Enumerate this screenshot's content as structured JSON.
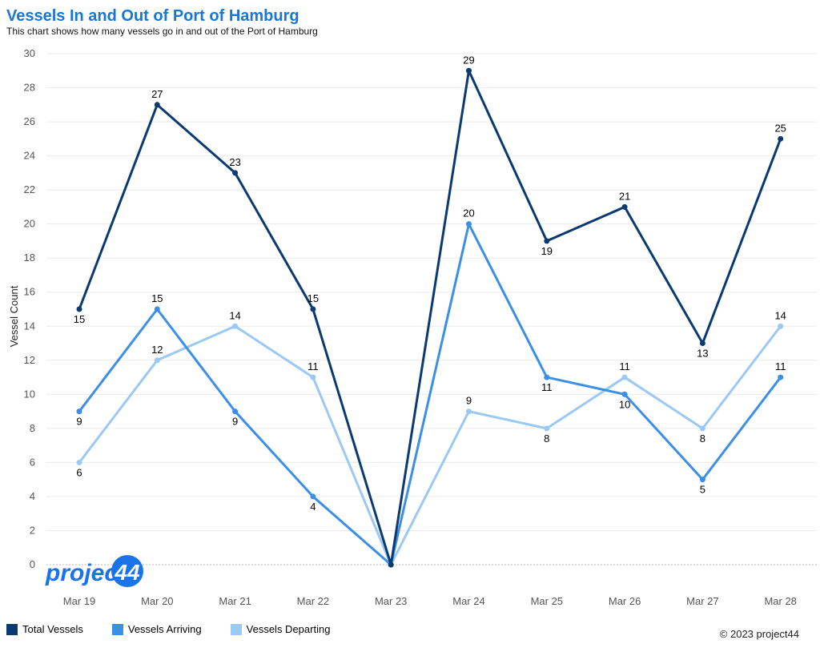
{
  "title": "Vessels In and Out of Port of Hamburg",
  "subtitle": "This chart shows how many vessels go in and out of the Port of Hamburg",
  "copyright": "© 2023 project44",
  "logo_text": "project44",
  "chart_data": {
    "type": "line",
    "title": "Vessels In and Out of Port of Hamburg",
    "ylabel": "Vessel Count",
    "xlabel": "",
    "ylim": [
      0,
      30
    ],
    "yticks": [
      0,
      2,
      4,
      6,
      8,
      10,
      12,
      14,
      16,
      18,
      20,
      22,
      24,
      26,
      28,
      30
    ],
    "grid": true,
    "legend": "bottom-left",
    "categories": [
      "Mar 19",
      "Mar 20",
      "Mar 21",
      "Mar 22",
      "Mar 23",
      "Mar 24",
      "Mar 25",
      "Mar 26",
      "Mar 27",
      "Mar 28"
    ],
    "series": [
      {
        "name": "Total Vessels",
        "color": "#0a3a70",
        "values": [
          15,
          27,
          23,
          15,
          0,
          29,
          19,
          21,
          13,
          25
        ]
      },
      {
        "name": "Vessels Arriving",
        "color": "#3b8fe6",
        "values": [
          9,
          15,
          9,
          4,
          0,
          20,
          11,
          10,
          5,
          11
        ]
      },
      {
        "name": "Vessels Departing",
        "color": "#9cc8f4",
        "values": [
          6,
          12,
          14,
          11,
          0,
          9,
          8,
          11,
          8,
          14
        ]
      }
    ]
  }
}
